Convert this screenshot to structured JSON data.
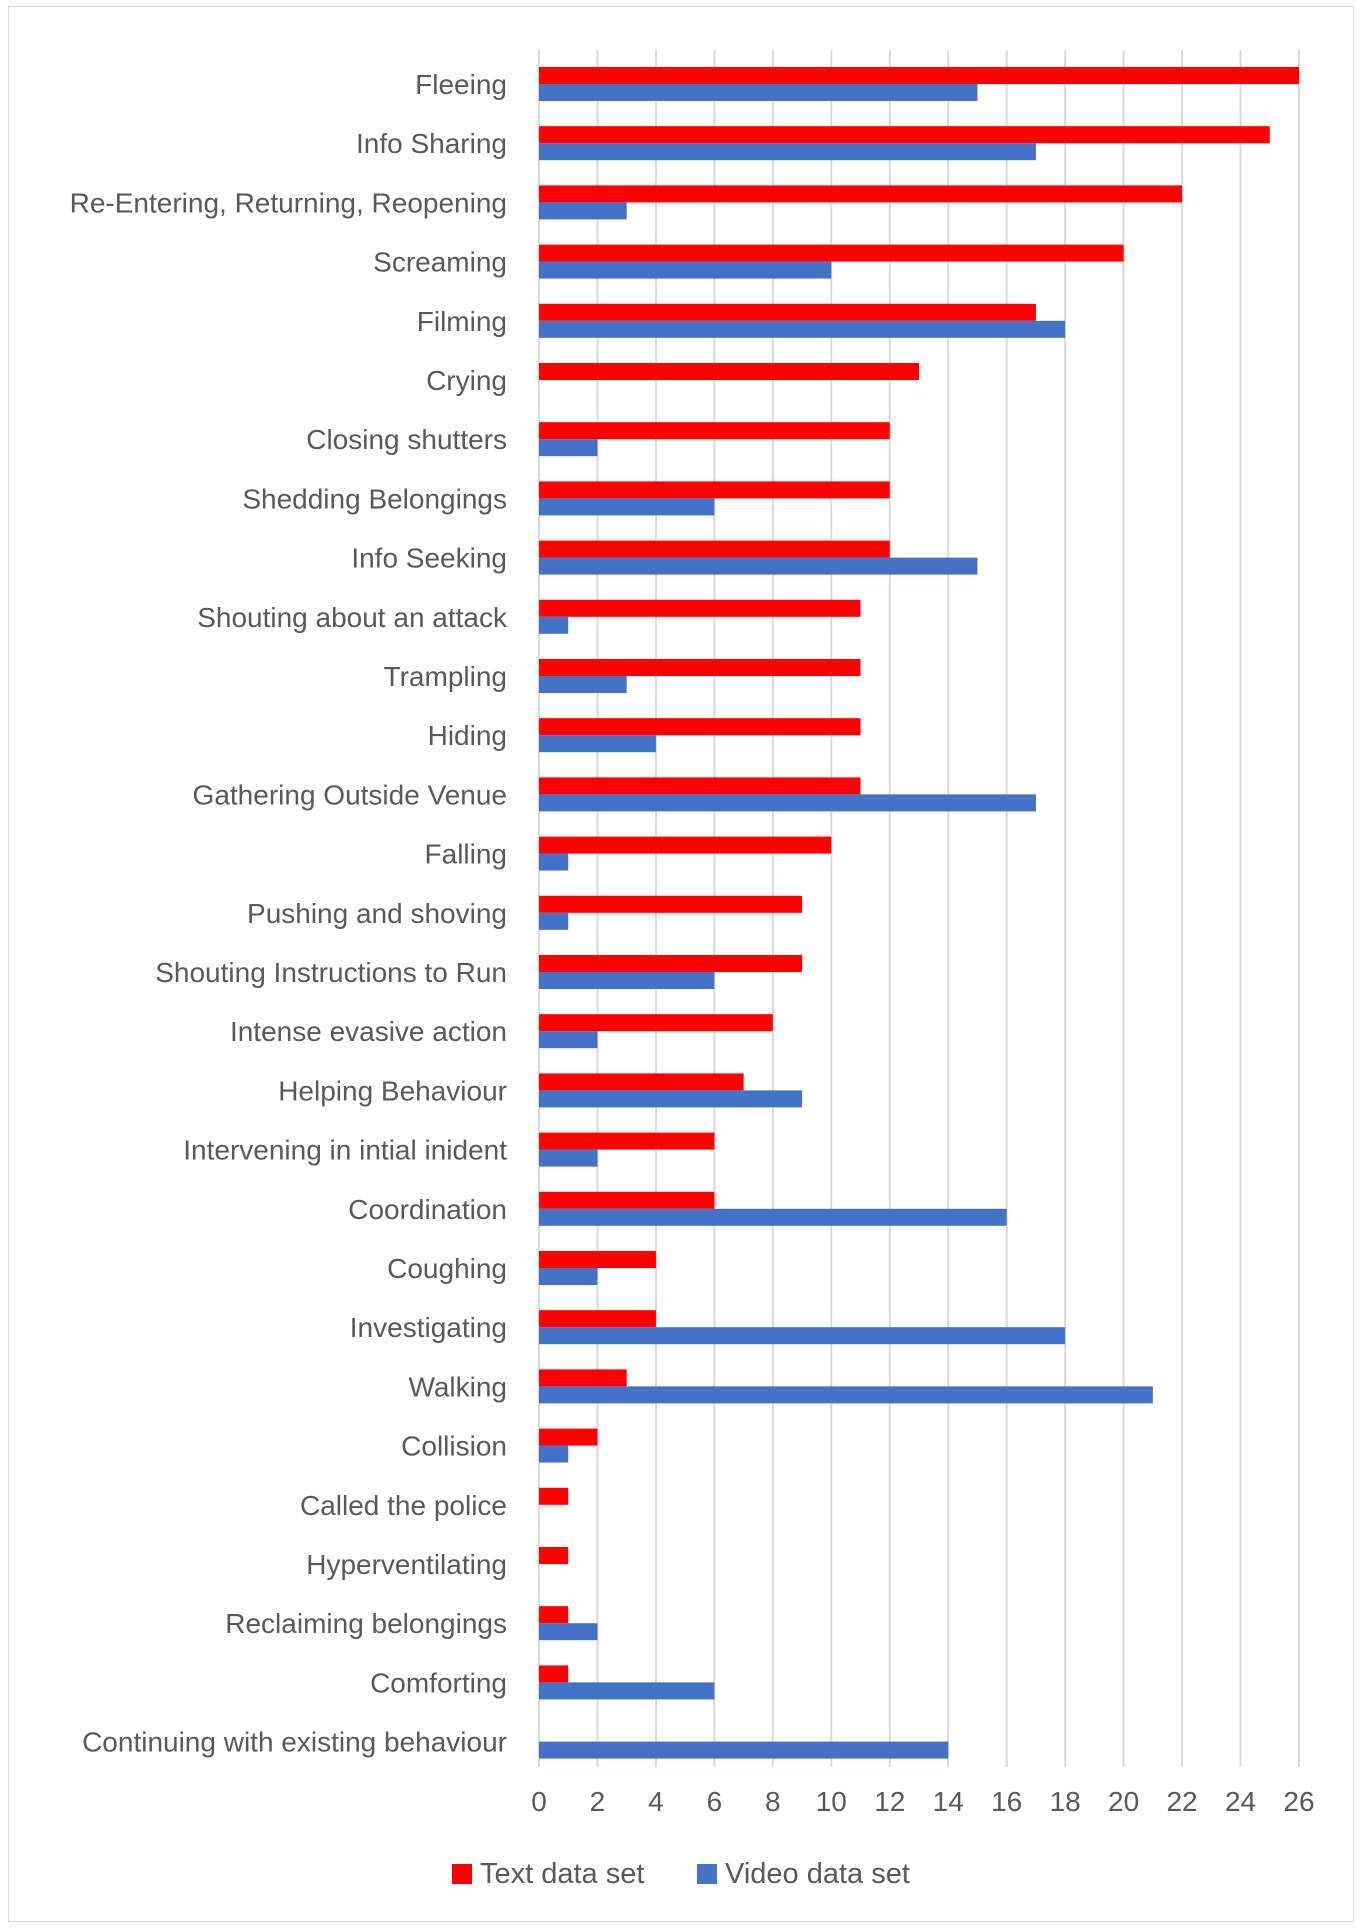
{
  "chart_data": {
    "type": "bar",
    "orientation": "horizontal",
    "categories": [
      "Fleeing",
      "Info Sharing",
      "Re-Entering, Returning, Reopening",
      "Screaming",
      "Filming",
      "Crying",
      "Closing shutters",
      "Shedding Belongings",
      "Info Seeking",
      "Shouting about an attack",
      "Trampling",
      "Hiding",
      "Gathering Outside Venue",
      "Falling",
      "Pushing and shoving",
      "Shouting Instructions to Run",
      "Intense evasive action",
      "Helping Behaviour",
      "Intervening in intial inident",
      "Coordination",
      "Coughing",
      "Investigating",
      "Walking",
      "Collision",
      "Called the police",
      "Hyperventilating",
      "Reclaiming belongings",
      "Comforting",
      "Continuing with existing behaviour"
    ],
    "series": [
      {
        "name": "Text data set",
        "color": "#ff0000",
        "values": [
          26,
          25,
          22,
          20,
          17,
          13,
          12,
          12,
          12,
          11,
          11,
          11,
          11,
          10,
          9,
          9,
          8,
          7,
          6,
          6,
          4,
          4,
          3,
          2,
          1,
          1,
          1,
          1,
          0
        ]
      },
      {
        "name": "Video data set",
        "color": "#4472c4",
        "values": [
          15,
          17,
          3,
          10,
          18,
          0,
          2,
          6,
          15,
          1,
          3,
          4,
          17,
          1,
          1,
          6,
          2,
          9,
          2,
          16,
          2,
          18,
          21,
          1,
          0,
          0,
          2,
          6,
          14
        ]
      }
    ],
    "xlim": [
      0,
      26
    ],
    "xticks": [
      0,
      2,
      4,
      6,
      8,
      10,
      12,
      14,
      16,
      18,
      20,
      22,
      24,
      26
    ],
    "grid": "vertical",
    "legend": "bottom",
    "title": "",
    "xlabel": "",
    "ylabel": ""
  },
  "colors": {
    "gridline": "#d9d9d9",
    "axis_text": "#595959",
    "frame_border": "#d9d9d9"
  }
}
